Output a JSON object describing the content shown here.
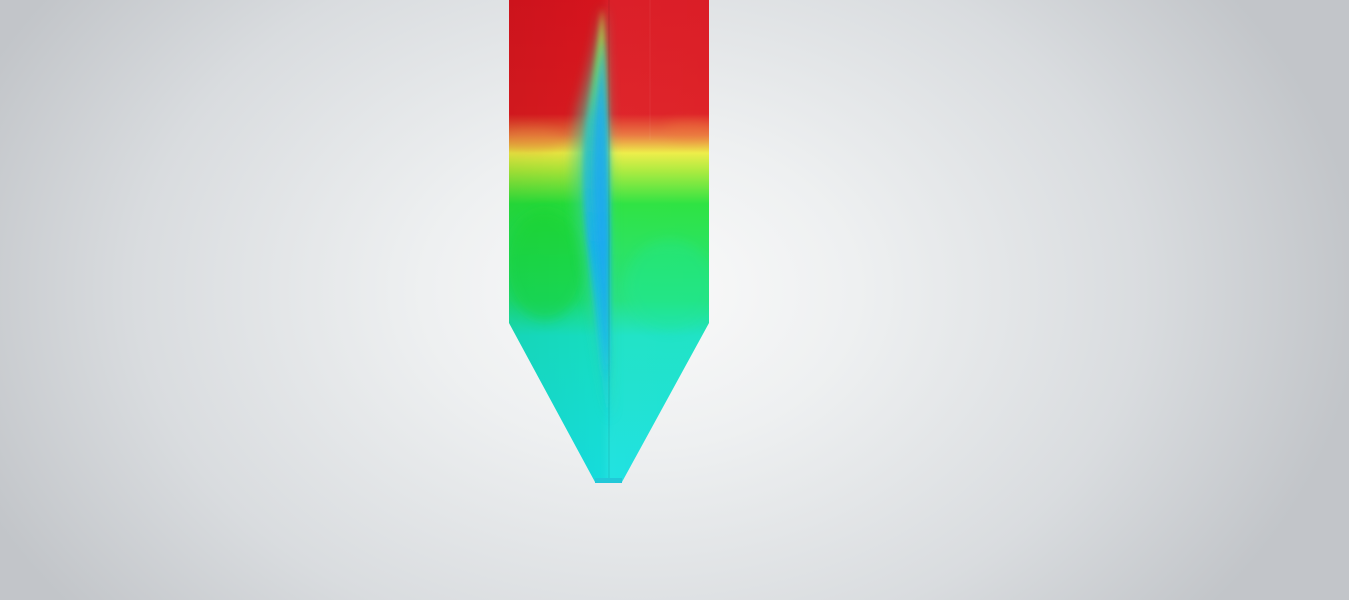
{
  "scene": {
    "background_colors": [
      "#fafafa",
      "#eef0f1",
      "#d9dcdf",
      "#c2c5c9"
    ],
    "model": "silo-cross-section",
    "field_colors": {
      "high": "#d9141e",
      "transition": "#e8e83a",
      "mid": "#1fe03c",
      "low": "#16e2da",
      "core": "#1ab4f0"
    }
  }
}
